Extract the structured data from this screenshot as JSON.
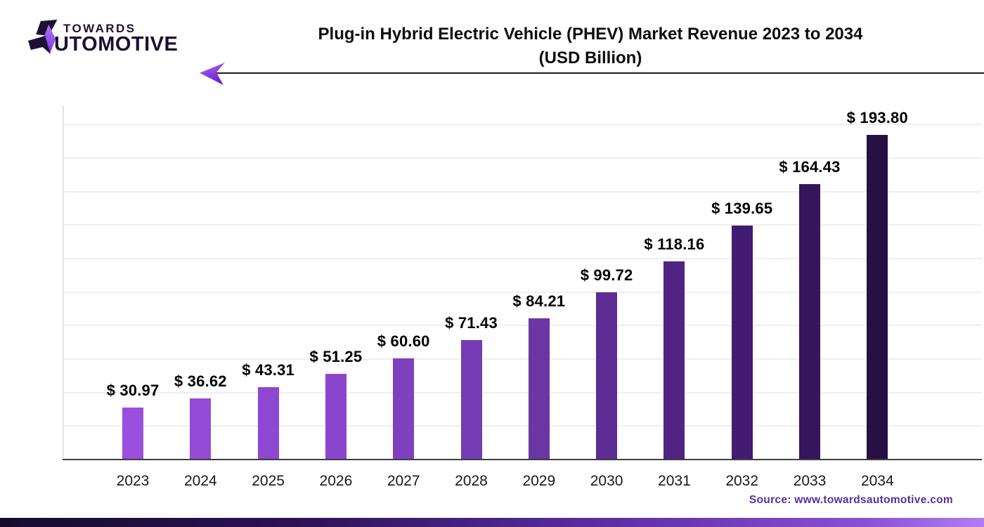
{
  "logo": {
    "top": "TOWARDS",
    "name": "AUTOMOTIVE",
    "name_rest": "UTOMOTIVE",
    "dark_color": "#1d1033",
    "accent_color": "#8a42e0"
  },
  "header": {
    "title_line1": "Plug-in Hybrid Electric Vehicle (PHEV) Market Revenue 2023 to 2034",
    "title_line2": "(USD Billion)"
  },
  "chart_data": {
    "type": "bar",
    "title": "Plug-in Hybrid Electric Vehicle (PHEV) Market Revenue 2023 to 2034",
    "subtitle": "(USD Billion)",
    "unit": "USD Billion",
    "categories": [
      "2023",
      "2024",
      "2025",
      "2026",
      "2027",
      "2028",
      "2029",
      "2030",
      "2031",
      "2032",
      "2033",
      "2034"
    ],
    "values": [
      30.97,
      36.62,
      43.31,
      51.25,
      60.6,
      71.43,
      84.21,
      99.72,
      118.16,
      139.65,
      164.43,
      193.8
    ],
    "value_labels": [
      "$ 30.97",
      "$ 36.62",
      "$ 43.31",
      "$ 51.25",
      "$ 60.60",
      "$ 71.43",
      "$ 84.21",
      "$ 99.72",
      "$ 118.16",
      "$ 139.65",
      "$ 164.43",
      "$ 193.80"
    ],
    "bar_colors": [
      "#9a50dc",
      "#944bd6",
      "#8e48d1",
      "#8a46cc",
      "#7f40c0",
      "#753bb4",
      "#6b35a4",
      "#5d2c95",
      "#502383",
      "#431b72",
      "#36155c",
      "#271043"
    ],
    "ylim": [
      0,
      200
    ],
    "grid": true,
    "grid_interval": 20,
    "gridline_color": "#efefef",
    "baseline_color": "#3f3f3f",
    "legend": "none",
    "xlabel": "",
    "ylabel": ""
  },
  "footer": {
    "source": "Source: www.towardsautomotive.com",
    "source_color": "#5b2da0"
  }
}
